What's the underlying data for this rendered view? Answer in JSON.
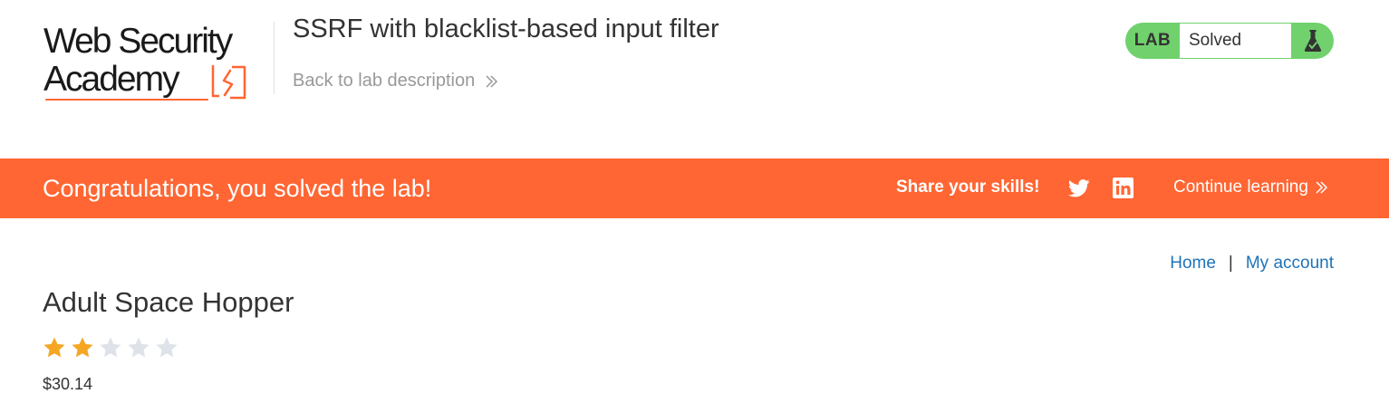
{
  "academy": {
    "logo_line1": "Web Security",
    "logo_line2": "Academy",
    "lab_title": "SSRF with blacklist-based input filter",
    "back_link": "Back to lab description"
  },
  "lab_status": {
    "label": "LAB",
    "status": "Solved",
    "icon": "flask-icon"
  },
  "banner": {
    "message": "Congratulations, you solved the lab!",
    "share_label": "Share your skills!",
    "social_icons": [
      "twitter-icon",
      "linkedin-icon"
    ],
    "continue_label": "Continue learning"
  },
  "nav": {
    "home": "Home",
    "separator": "|",
    "my_account": "My account"
  },
  "product": {
    "title": "Adult Space Hopper",
    "rating": 2,
    "rating_max": 5,
    "price": "$30.14"
  },
  "colors": {
    "accent": "#ff6633",
    "solved_green": "#70d16d",
    "link_blue": "#1f73b7",
    "star_filled": "#f5a623",
    "star_empty": "#dde3e8"
  }
}
